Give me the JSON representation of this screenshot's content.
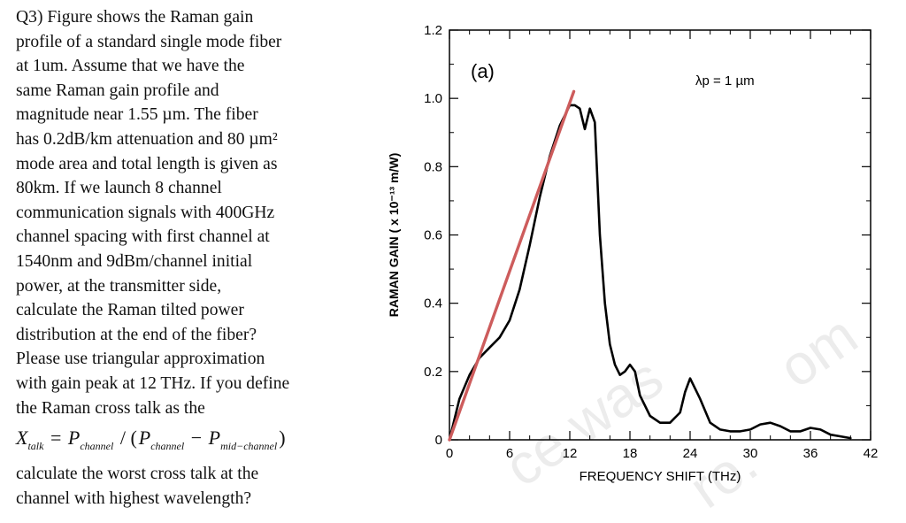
{
  "question": {
    "lines": [
      "Q3) Figure shows the Raman gain",
      "profile of a standard single mode fiber",
      "at 1um. Assume that we have the",
      "same Raman gain profile and",
      "magnitude near 1.55 µm. The fiber",
      "has 0.2dB/km attenuation and 80 µm²",
      "mode area and total length is  given as",
      "80km. If we launch 8 channel",
      "communication signals with 400GHz",
      "channel spacing with first channel at",
      "1540nm and 9dBm/channel initial",
      "power, at the transmitter side,",
      "calculate the Raman tilted power",
      "distribution at the end of the fiber?",
      "Please use triangular approximation",
      "with gain peak at 12 THz. If you define",
      "the Raman cross talk as the"
    ],
    "formula": {
      "x": "X",
      "x_sub": "talk",
      "eq": "=",
      "p1": "P",
      "p1_sub": "channel",
      "slash": "/ (",
      "p2": "P",
      "p2_sub": "channel",
      "minus": "−",
      "p3": "P",
      "p3_sub": "mid−channel",
      "close": ")"
    },
    "tail_lines": [
      "calculate the worst cross talk at the",
      "channel with highest wavelength?"
    ]
  },
  "watermarks": [
    "ce was",
    "om",
    "ro."
  ],
  "chart_data": {
    "type": "line",
    "panel_label": "(a)",
    "annotation": "λp = 1 µm",
    "xlabel": "FREQUENCY SHIFT (THz)",
    "ylabel": "RAMAN GAIN ( x 10⁻¹³ m/W)",
    "xlim": [
      0,
      42
    ],
    "ylim": [
      0,
      1.2
    ],
    "x_ticks": [
      "0",
      "6",
      "12",
      "18",
      "24",
      "30",
      "36",
      "42"
    ],
    "y_ticks": [
      "0",
      "0.2",
      "0.4",
      "0.6",
      "0.8",
      "1.0",
      "1.2"
    ],
    "series": [
      {
        "color": "#000000",
        "x": [
          0,
          1,
          2,
          3,
          4,
          5,
          6,
          7,
          8,
          9,
          10,
          11,
          12,
          12.5,
          13,
          13.5,
          14,
          14.5,
          15,
          15.5,
          16,
          16.5,
          17,
          17.5,
          18,
          18.5,
          19,
          20,
          21,
          22,
          23,
          23.5,
          24,
          25,
          26,
          27,
          28,
          29,
          30,
          31,
          32,
          33,
          34,
          35,
          36,
          37,
          38,
          39,
          40
        ],
        "y": [
          0.0,
          0.12,
          0.19,
          0.24,
          0.27,
          0.3,
          0.35,
          0.44,
          0.57,
          0.71,
          0.83,
          0.92,
          0.98,
          0.98,
          0.97,
          0.91,
          0.97,
          0.93,
          0.6,
          0.4,
          0.28,
          0.22,
          0.19,
          0.2,
          0.22,
          0.2,
          0.13,
          0.07,
          0.05,
          0.05,
          0.08,
          0.14,
          0.18,
          0.12,
          0.05,
          0.03,
          0.025,
          0.025,
          0.03,
          0.045,
          0.05,
          0.04,
          0.025,
          0.025,
          0.035,
          0.03,
          0.015,
          0.01,
          0.005
        ]
      },
      {
        "color": "#cd5c5c",
        "x": [
          0,
          12.4
        ],
        "y": [
          0,
          1.02
        ]
      }
    ]
  }
}
